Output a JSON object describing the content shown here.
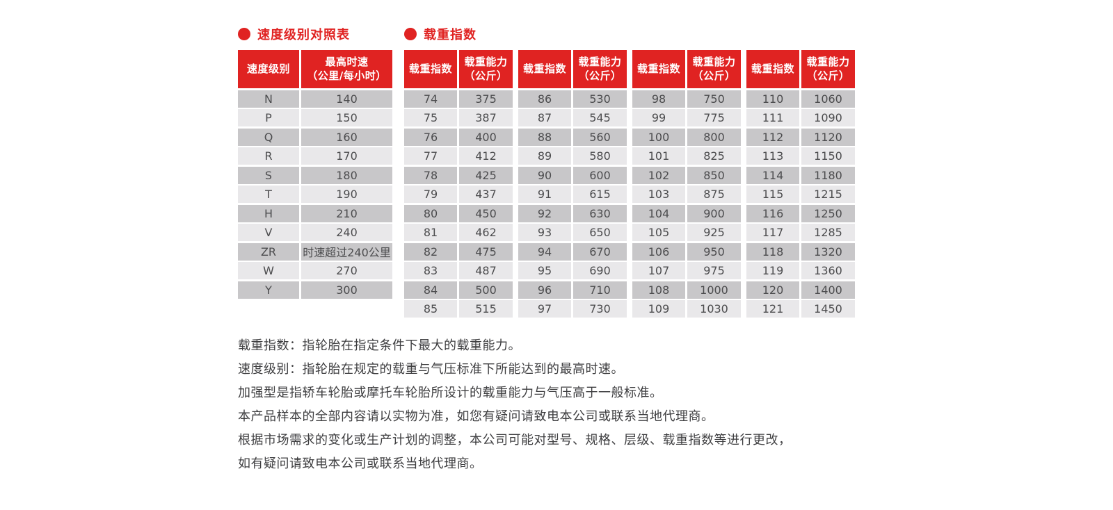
{
  "colors": {
    "accent_red": "#e02322",
    "row_dark": "#c8c7c9",
    "row_light": "#e9e8ea",
    "cell_text": "#4c4c4e",
    "note_text": "#3e3e40"
  },
  "icons": {
    "bullet": "red-dot"
  },
  "speed_table": {
    "title": "速度级别对照表",
    "headers": [
      "速度级别",
      "最高时速\n（公里/每小时）"
    ],
    "rows": [
      [
        "N",
        "140"
      ],
      [
        "P",
        "150"
      ],
      [
        "Q",
        "160"
      ],
      [
        "R",
        "170"
      ],
      [
        "S",
        "180"
      ],
      [
        "T",
        "190"
      ],
      [
        "H",
        "210"
      ],
      [
        "V",
        "240"
      ],
      [
        "ZR",
        "时速超过240公里"
      ],
      [
        "W",
        "270"
      ],
      [
        "Y",
        "300"
      ]
    ]
  },
  "load_table": {
    "title": "载重指数",
    "headers": [
      "载重指数",
      "载重能力\n（公斤）"
    ],
    "groups": [
      {
        "rows": [
          [
            "74",
            "375"
          ],
          [
            "75",
            "387"
          ],
          [
            "76",
            "400"
          ],
          [
            "77",
            "412"
          ],
          [
            "78",
            "425"
          ],
          [
            "79",
            "437"
          ],
          [
            "80",
            "450"
          ],
          [
            "81",
            "462"
          ],
          [
            "82",
            "475"
          ],
          [
            "83",
            "487"
          ],
          [
            "84",
            "500"
          ],
          [
            "85",
            "515"
          ]
        ]
      },
      {
        "rows": [
          [
            "86",
            "530"
          ],
          [
            "87",
            "545"
          ],
          [
            "88",
            "560"
          ],
          [
            "89",
            "580"
          ],
          [
            "90",
            "600"
          ],
          [
            "91",
            "615"
          ],
          [
            "92",
            "630"
          ],
          [
            "93",
            "650"
          ],
          [
            "94",
            "670"
          ],
          [
            "95",
            "690"
          ],
          [
            "96",
            "710"
          ],
          [
            "97",
            "730"
          ]
        ]
      },
      {
        "rows": [
          [
            "98",
            "750"
          ],
          [
            "99",
            "775"
          ],
          [
            "100",
            "800"
          ],
          [
            "101",
            "825"
          ],
          [
            "102",
            "850"
          ],
          [
            "103",
            "875"
          ],
          [
            "104",
            "900"
          ],
          [
            "105",
            "925"
          ],
          [
            "106",
            "950"
          ],
          [
            "107",
            "975"
          ],
          [
            "108",
            "1000"
          ],
          [
            "109",
            "1030"
          ]
        ]
      },
      {
        "rows": [
          [
            "110",
            "1060"
          ],
          [
            "111",
            "1090"
          ],
          [
            "112",
            "1120"
          ],
          [
            "113",
            "1150"
          ],
          [
            "114",
            "1180"
          ],
          [
            "115",
            "1215"
          ],
          [
            "116",
            "1250"
          ],
          [
            "117",
            "1285"
          ],
          [
            "118",
            "1320"
          ],
          [
            "119",
            "1360"
          ],
          [
            "120",
            "1400"
          ],
          [
            "121",
            "1450"
          ]
        ]
      }
    ]
  },
  "notes": [
    "载重指数：指轮胎在指定条件下最大的载重能力。",
    "速度级别：指轮胎在规定的载重与气压标准下所能达到的最高时速。",
    "加强型是指轿车轮胎或摩托车轮胎所设计的载重能力与气压高于一般标准。",
    "本产品样本的全部内容请以实物为准，如您有疑问请致电本公司或联系当地代理商。",
    "根据市场需求的变化或生产计划的调整，本公司可能对型号、规格、层级、载重指数等进行更改，",
    "如有疑问请致电本公司或联系当地代理商。"
  ]
}
